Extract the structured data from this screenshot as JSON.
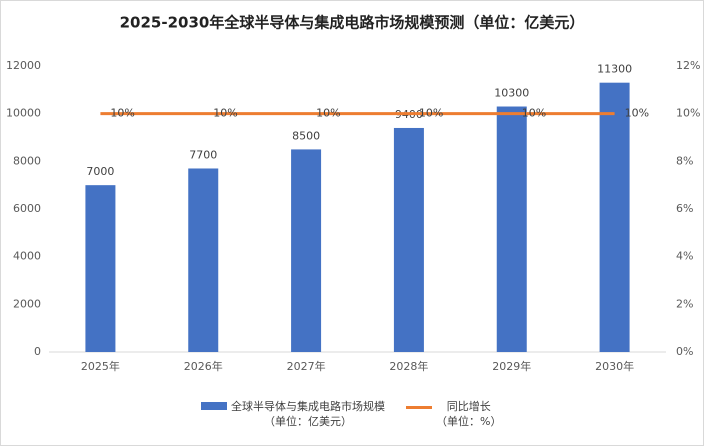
{
  "chart_data": {
    "type": "bar",
    "title": "2025-2030年全球半导体与集成电路市场规模预测（单位：亿美元）",
    "categories": [
      "2025年",
      "2026年",
      "2027年",
      "2028年",
      "2029年",
      "2030年"
    ],
    "series": [
      {
        "name": "全球半导体与集成电路市场规模\n（单位：亿美元）",
        "type": "bar",
        "color": "#4472c4",
        "values": [
          7000,
          7700,
          8500,
          9400,
          10300,
          11300
        ]
      },
      {
        "name": "同比增长\n（单位：%）",
        "type": "line",
        "axis": "y2",
        "color": "#ed7d31",
        "values": [
          10,
          10,
          10,
          10,
          10,
          10
        ],
        "value_labels": [
          "10%",
          "10%",
          "10%",
          "10%",
          "10%",
          "10%"
        ]
      }
    ],
    "ylim": [
      0,
      12000
    ],
    "yticks": [
      0,
      2000,
      4000,
      6000,
      8000,
      10000,
      12000
    ],
    "y2lim": [
      0,
      12
    ],
    "y2ticks": [
      {
        "value": 0,
        "label": "0%"
      },
      {
        "value": 2,
        "label": "2%"
      },
      {
        "value": 4,
        "label": "4%"
      },
      {
        "value": 6,
        "label": "6%"
      },
      {
        "value": 8,
        "label": "8%"
      },
      {
        "value": 10,
        "label": "10%"
      },
      {
        "value": 12,
        "label": "12%"
      }
    ],
    "grid": false,
    "legend": "bottom"
  }
}
